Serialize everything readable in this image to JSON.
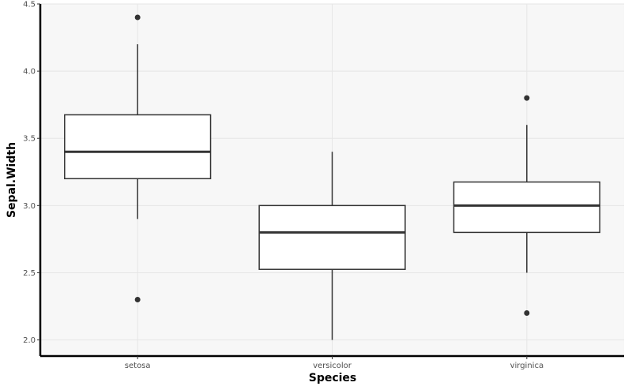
{
  "chart_data": {
    "type": "boxplot",
    "xlabel": "Species",
    "ylabel": "Sepal.Width",
    "categories": [
      "setosa",
      "versicolor",
      "virginica"
    ],
    "ylim": [
      1.88,
      4.5
    ],
    "yticks": [
      2.0,
      2.5,
      3.0,
      3.5,
      4.0,
      4.5
    ],
    "ytick_labels": [
      "2.0",
      "2.5",
      "3.0",
      "3.5",
      "4.0",
      "4.5"
    ],
    "grid": true,
    "boxes": [
      {
        "category": "setosa",
        "whisker_low": 2.9,
        "q1": 3.2,
        "median": 3.4,
        "q3": 3.675,
        "whisker_high": 4.2,
        "outliers": [
          4.4,
          2.3
        ]
      },
      {
        "category": "versicolor",
        "whisker_low": 2.0,
        "q1": 2.525,
        "median": 2.8,
        "q3": 3.0,
        "whisker_high": 3.4,
        "outliers": []
      },
      {
        "category": "virginica",
        "whisker_low": 2.5,
        "q1": 2.8,
        "median": 3.0,
        "q3": 3.175,
        "whisker_high": 3.6,
        "outliers": [
          3.8,
          2.2
        ]
      }
    ],
    "colors": {
      "panel": "#f7f7f7",
      "grid": "#e6e6e6",
      "box_fill": "#ffffff",
      "box_line": "#333333",
      "axis": "#000000"
    }
  }
}
